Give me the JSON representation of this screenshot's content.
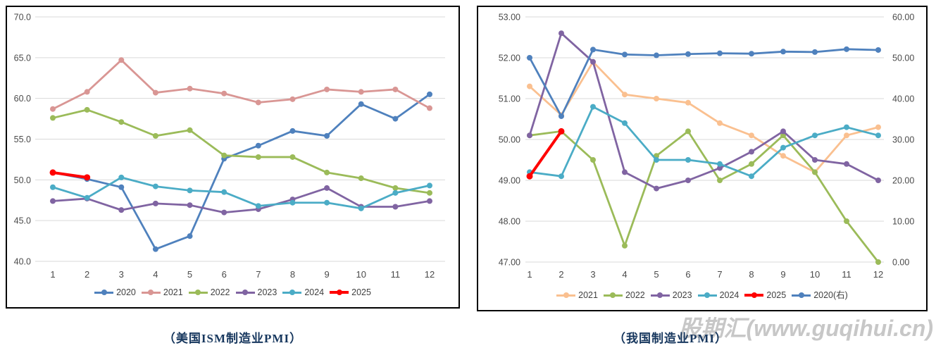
{
  "watermark": "股期汇(www.guqihui.cn)",
  "chart_data": [
    {
      "type": "line",
      "title": "（美国ISM制造业PMI）",
      "x_labels": [
        "1",
        "2",
        "3",
        "4",
        "5",
        "6",
        "7",
        "8",
        "9",
        "10",
        "11",
        "12"
      ],
      "ylim": [
        40.0,
        70.0
      ],
      "ytick_step": 5.0,
      "ytick_labels": [
        "70.0",
        "65.0",
        "60.0",
        "55.0",
        "50.0",
        "45.0",
        "40.0"
      ],
      "grid": true,
      "legend_position": "bottom",
      "gridline_color": "#D9D9D9",
      "series": [
        {
          "name": "2020",
          "color": "#4F81BD",
          "values": [
            50.9,
            50.1,
            49.1,
            41.5,
            43.1,
            52.6,
            54.2,
            56.0,
            55.4,
            59.3,
            57.5,
            60.5
          ]
        },
        {
          "name": "2021",
          "color": "#D99694",
          "values": [
            58.7,
            60.8,
            64.7,
            60.7,
            61.2,
            60.6,
            59.5,
            59.9,
            61.1,
            60.8,
            61.1,
            58.8
          ]
        },
        {
          "name": "2022",
          "color": "#9BBB59",
          "values": [
            57.6,
            58.6,
            57.1,
            55.4,
            56.1,
            53.0,
            52.8,
            52.8,
            50.9,
            50.2,
            49.0,
            48.4
          ]
        },
        {
          "name": "2023",
          "color": "#8064A2",
          "values": [
            47.4,
            47.7,
            46.3,
            47.1,
            46.9,
            46.0,
            46.4,
            47.6,
            49.0,
            46.7,
            46.7,
            47.4
          ]
        },
        {
          "name": "2024",
          "color": "#4BACC6",
          "values": [
            49.1,
            47.8,
            50.3,
            49.2,
            48.7,
            48.5,
            46.8,
            47.2,
            47.2,
            46.5,
            48.4,
            49.3
          ]
        },
        {
          "name": "2025",
          "color": "#FF0000",
          "values": [
            50.9,
            50.3
          ],
          "emphasis": true
        }
      ]
    },
    {
      "type": "line",
      "title": "（我国制造业PMI）",
      "x_labels": [
        "1",
        "2",
        "3",
        "4",
        "5",
        "6",
        "7",
        "8",
        "9",
        "10",
        "11",
        "12"
      ],
      "ylim": [
        47.0,
        53.0
      ],
      "ytick_step": 1.0,
      "ytick_labels": [
        "53.00",
        "52.00",
        "51.00",
        "50.00",
        "49.00",
        "48.00",
        "47.00"
      ],
      "y2lim": [
        0.0,
        60.0
      ],
      "y2tick_step": 10.0,
      "y2tick_labels": [
        "60.00",
        "50.00",
        "40.00",
        "30.00",
        "20.00",
        "10.00",
        "0.00"
      ],
      "grid": true,
      "legend_position": "bottom",
      "gridline_color": "#D9D9D9",
      "series": [
        {
          "name": "2021",
          "color": "#FAC090",
          "values": [
            51.3,
            50.6,
            51.9,
            51.1,
            51.0,
            50.9,
            50.4,
            50.1,
            49.6,
            49.2,
            50.1,
            50.3
          ]
        },
        {
          "name": "2022",
          "color": "#9BBB59",
          "values": [
            50.1,
            50.2,
            49.5,
            47.4,
            49.6,
            50.2,
            49.0,
            49.4,
            50.1,
            49.2,
            48.0,
            47.0
          ]
        },
        {
          "name": "2023",
          "color": "#8064A2",
          "values": [
            50.1,
            52.6,
            51.9,
            49.2,
            48.8,
            49.0,
            49.3,
            49.7,
            50.2,
            49.5,
            49.4,
            49.0
          ]
        },
        {
          "name": "2024",
          "color": "#4BACC6",
          "values": [
            49.2,
            49.1,
            50.8,
            50.4,
            49.5,
            49.5,
            49.4,
            49.1,
            49.8,
            50.1,
            50.3,
            50.1
          ]
        },
        {
          "name": "2025",
          "color": "#FF0000",
          "values": [
            49.1,
            50.2
          ],
          "emphasis": true
        },
        {
          "name": "2020(右)",
          "color": "#4F81BD",
          "axis": "right",
          "values": [
            50.0,
            35.7,
            52.0,
            50.8,
            50.6,
            50.9,
            51.1,
            51.0,
            51.5,
            51.4,
            52.1,
            51.9
          ]
        }
      ]
    }
  ]
}
